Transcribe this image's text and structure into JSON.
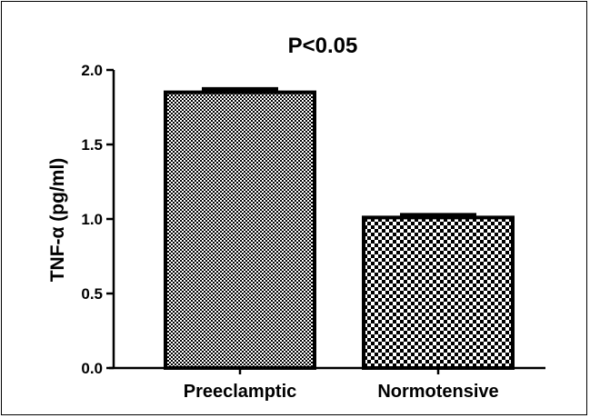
{
  "chart_data": {
    "type": "bar",
    "title": "P<0.05",
    "xlabel": "",
    "ylabel": "TNF-α (pg/ml)",
    "categories": [
      "Preeclamptic",
      "Normotensive"
    ],
    "values": [
      1.85,
      1.01
    ],
    "error_bars": [
      0.02,
      0.015
    ],
    "ylim": [
      0,
      2.0
    ],
    "yticks": [
      "0.0",
      "0.5",
      "1.0",
      "1.5",
      "2.0"
    ],
    "grid": false,
    "legend": "none",
    "bar_fill": [
      "fine-checker",
      "coarse-checker"
    ],
    "colors": {
      "bar_dark": "#000000",
      "bar_light": "#ffffff"
    }
  }
}
